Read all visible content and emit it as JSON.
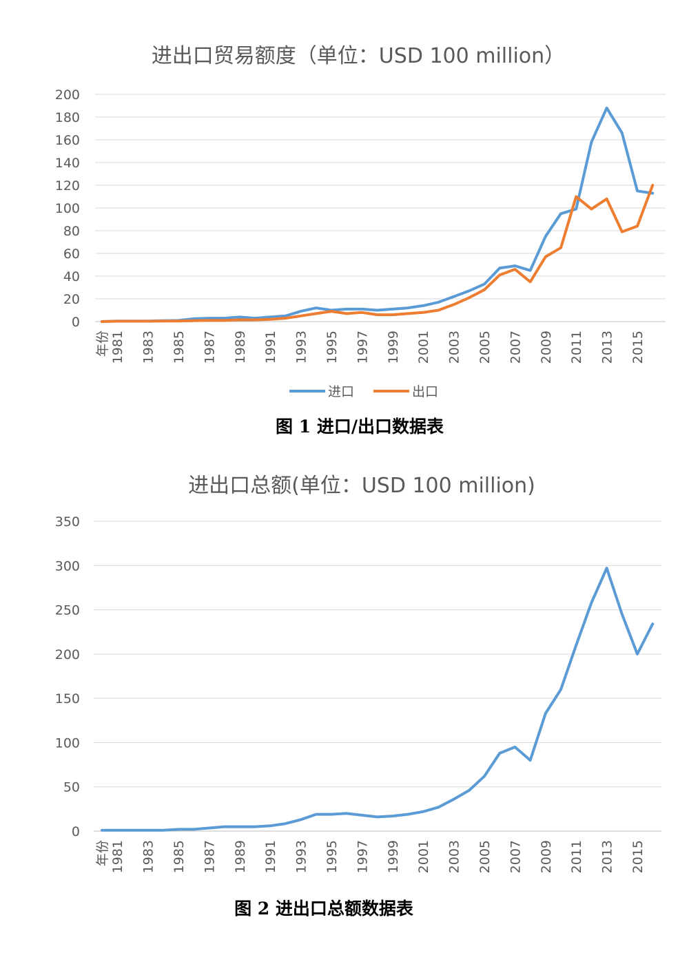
{
  "figures": [
    {
      "caption": "图 1   进口/出口数据表"
    },
    {
      "caption": "图 2   进出口总额数据表"
    }
  ],
  "chart_data": [
    {
      "type": "line",
      "title": "进出口贸易额度（单位：USD 100 million）",
      "xlabel": "",
      "ylabel": "",
      "ylim": [
        0,
        200
      ],
      "yticks": [
        0,
        20,
        40,
        60,
        80,
        100,
        120,
        140,
        160,
        180,
        200
      ],
      "x": [
        "年份",
        "1981",
        "1982",
        "1983",
        "1984",
        "1985",
        "1986",
        "1987",
        "1988",
        "1989",
        "1990",
        "1991",
        "1992",
        "1993",
        "1994",
        "1995",
        "1996",
        "1997",
        "1998",
        "1999",
        "2000",
        "2001",
        "2002",
        "2003",
        "2004",
        "2005",
        "2006",
        "2007",
        "2008",
        "2009",
        "2010",
        "2011",
        "2012",
        "2013",
        "2014",
        "2015",
        "2016"
      ],
      "x_tick_labels": [
        "年份",
        "1981",
        "1983",
        "1985",
        "1987",
        "1989",
        "1991",
        "1993",
        "1995",
        "1997",
        "1999",
        "2001",
        "2003",
        "2005",
        "2007",
        "2009",
        "2011",
        "2013",
        "2015"
      ],
      "grid": true,
      "legend_position": "bottom",
      "series": [
        {
          "name": "进口",
          "color": "#5B9BD5",
          "values": [
            0,
            0.5,
            0.5,
            0.5,
            0.8,
            1,
            2.5,
            3,
            3,
            4,
            3,
            4,
            5,
            9,
            12,
            10,
            11,
            11,
            10,
            11,
            12,
            14,
            17,
            22,
            27,
            33,
            47,
            49,
            45,
            75,
            95,
            99,
            158,
            188,
            166,
            115,
            113
          ]
        },
        {
          "name": "出口",
          "color": "#ED7D31",
          "values": [
            0,
            0.3,
            0.3,
            0.3,
            0.5,
            0.5,
            0.8,
            1,
            1,
            1.5,
            1.5,
            2,
            3,
            5,
            7,
            9,
            7,
            8,
            6,
            6,
            7,
            8,
            10,
            15,
            21,
            28,
            41,
            46,
            35,
            57,
            65,
            110,
            99,
            108,
            79,
            84,
            120
          ]
        }
      ]
    },
    {
      "type": "line",
      "title": "进出口总额(单位：USD 100 million)",
      "xlabel": "",
      "ylabel": "",
      "ylim": [
        0,
        350
      ],
      "yticks": [
        0,
        50,
        100,
        150,
        200,
        250,
        300,
        350
      ],
      "x": [
        "年份",
        "1981",
        "1982",
        "1983",
        "1984",
        "1985",
        "1986",
        "1987",
        "1988",
        "1989",
        "1990",
        "1991",
        "1992",
        "1993",
        "1994",
        "1995",
        "1996",
        "1997",
        "1998",
        "1999",
        "2000",
        "2001",
        "2002",
        "2003",
        "2004",
        "2005",
        "2006",
        "2007",
        "2008",
        "2009",
        "2010",
        "2011",
        "2012",
        "2013",
        "2014",
        "2015",
        "2016"
      ],
      "x_tick_labels": [
        "年份",
        "1981",
        "1983",
        "1985",
        "1987",
        "1989",
        "1991",
        "1993",
        "1995",
        "1997",
        "1999",
        "2001",
        "2003",
        "2005",
        "2007",
        "2009",
        "2011",
        "2013",
        "2015"
      ],
      "grid": true,
      "series": [
        {
          "color": "#5B9BD5",
          "values": [
            1,
            1,
            1,
            1,
            1,
            2,
            2,
            3.5,
            5,
            5,
            5,
            6,
            8.5,
            13,
            19,
            19,
            20,
            18,
            16,
            17,
            19,
            22,
            27,
            36,
            46,
            62,
            88,
            95,
            80,
            133,
            160,
            210,
            258,
            297,
            245,
            200,
            234
          ]
        }
      ]
    }
  ]
}
